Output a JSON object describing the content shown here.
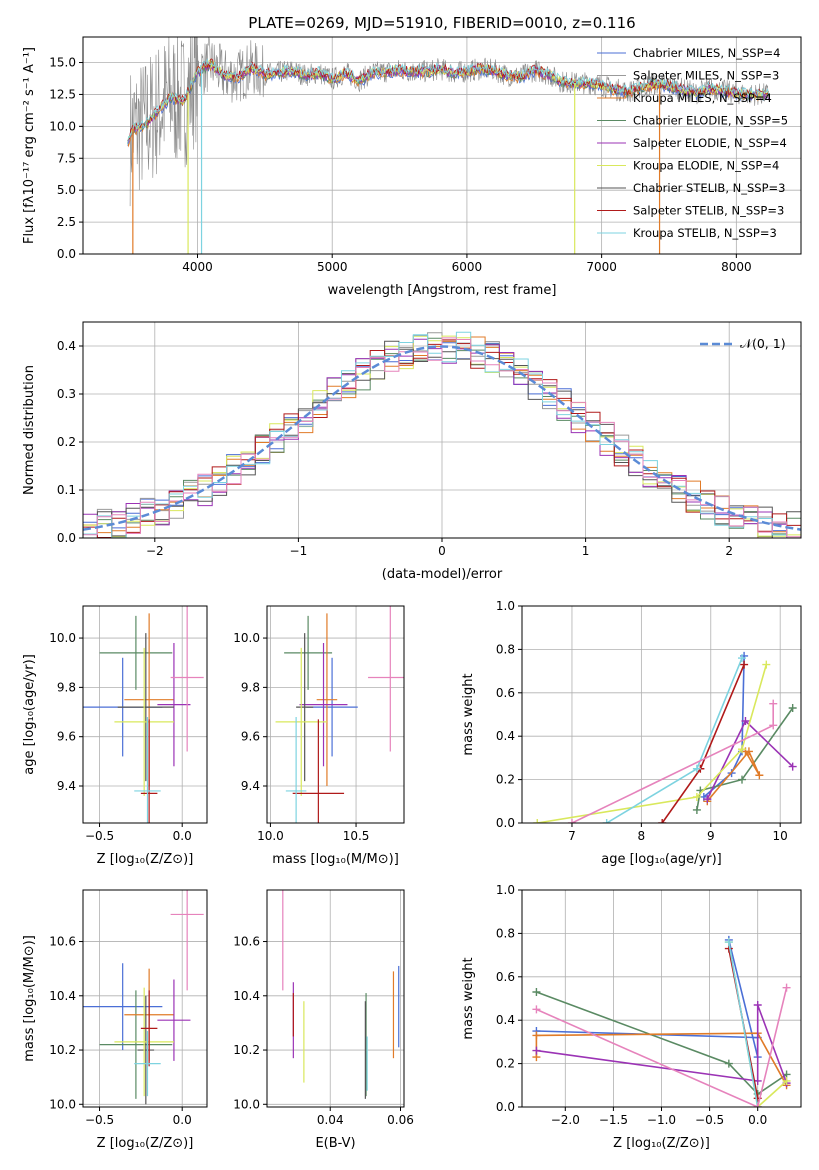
{
  "figure": {
    "title": "PLATE=0269, MJD=51910, FIBERID=0010, z=0.116"
  },
  "chart_data": [
    {
      "type": "line",
      "id": "spectrum",
      "xlabel": "wavelength [Angstrom, rest frame]",
      "ylabel": "Flux [fλ10⁻¹⁷ erg cm⁻² s⁻¹ A⁻¹]",
      "xlim": [
        3150,
        8480
      ],
      "ylim": [
        0,
        17
      ],
      "xticks": [
        4000,
        5000,
        6000,
        7000,
        8000
      ],
      "yticks": [
        0.0,
        2.5,
        5.0,
        7.5,
        10.0,
        12.5,
        15.0
      ],
      "legend_position": "right",
      "legend": [
        {
          "label": "Chabrier MILES, N_SSP=4",
          "color": "#4b6fd6"
        },
        {
          "label": "Salpeter MILES, N_SSP=3",
          "color": "#9a9a9a"
        },
        {
          "label": "Kroupa MILES, N_SSP=4",
          "color": "#e07b28"
        },
        {
          "label": "Chabrier ELODIE, N_SSP=5",
          "color": "#5a8a63"
        },
        {
          "label": "Salpeter ELODIE, N_SSP=4",
          "color": "#9b33b5"
        },
        {
          "label": "Kroupa ELODIE, N_SSP=4",
          "color": "#d9e85c"
        },
        {
          "label": "Chabrier STELIB, N_SSP=3",
          "color": "#555555"
        },
        {
          "label": "Salpeter STELIB, N_SSP=3",
          "color": "#b01a1a"
        },
        {
          "label": "Kroupa STELIB, N_SSP=3",
          "color": "#7dd3e0"
        }
      ],
      "data": {
        "data_x_range": [
          3500,
          8240
        ],
        "model_flux": [
          [
            3480,
            8.7
          ],
          [
            3520,
            9.8
          ],
          [
            3600,
            10.0
          ],
          [
            3700,
            11.2
          ],
          [
            3800,
            12.3
          ],
          [
            3900,
            12.0
          ],
          [
            4000,
            14.3
          ],
          [
            4100,
            14.9
          ],
          [
            4200,
            14.0
          ],
          [
            4300,
            13.9
          ],
          [
            4400,
            14.6
          ],
          [
            4500,
            14.1
          ],
          [
            4600,
            14.2
          ],
          [
            4700,
            14.4
          ],
          [
            4800,
            14.0
          ],
          [
            4900,
            14.2
          ],
          [
            5000,
            13.7
          ],
          [
            5100,
            14.2
          ],
          [
            5200,
            13.6
          ],
          [
            5300,
            14.2
          ],
          [
            5400,
            14.3
          ],
          [
            5500,
            14.4
          ],
          [
            5600,
            14.3
          ],
          [
            5700,
            14.3
          ],
          [
            5800,
            14.5
          ],
          [
            5900,
            14.2
          ],
          [
            6000,
            14.3
          ],
          [
            6100,
            14.5
          ],
          [
            6200,
            14.4
          ],
          [
            6300,
            14.0
          ],
          [
            6400,
            13.9
          ],
          [
            6500,
            14.4
          ],
          [
            6600,
            14.1
          ],
          [
            6700,
            13.5
          ],
          [
            6800,
            13.4
          ],
          [
            6900,
            13.4
          ],
          [
            7000,
            13.2
          ],
          [
            7100,
            12.9
          ],
          [
            7200,
            12.7
          ],
          [
            7300,
            13.1
          ],
          [
            7400,
            13.3
          ],
          [
            7500,
            13.2
          ],
          [
            7600,
            12.9
          ],
          [
            7700,
            12.6
          ],
          [
            7800,
            13.0
          ],
          [
            7900,
            12.8
          ],
          [
            8000,
            12.6
          ],
          [
            8100,
            12.5
          ],
          [
            8200,
            12.5
          ]
        ],
        "drops": [
          [
            3520,
            "#e07b28"
          ],
          [
            3930,
            "#d9e85c"
          ],
          [
            4030,
            "#7dd3e0"
          ],
          [
            6800,
            "#d9e85c"
          ],
          [
            7430,
            "#e07b28"
          ]
        ]
      }
    },
    {
      "type": "histogram",
      "id": "residuals",
      "xlabel": "(data-model)/error",
      "ylabel": "Normed distribution",
      "xlim": [
        -2.5,
        2.5
      ],
      "ylim": [
        0,
        0.45
      ],
      "xticks": [
        -2,
        -1,
        0,
        1,
        2
      ],
      "yticks": [
        0.0,
        0.1,
        0.2,
        0.3,
        0.4
      ],
      "legend": "𝒩(0, 1)",
      "legend_position": "top-right",
      "reference_color": "#5b8bd6",
      "bin_width": 0.1,
      "series_colors": [
        "#4b6fd6",
        "#9a9a9a",
        "#e07b28",
        "#5a8a63",
        "#9b33b5",
        "#d9e85c",
        "#555555",
        "#b01a1a",
        "#7dd3e0",
        "#e683bc"
      ]
    },
    {
      "type": "scatter",
      "id": "age-vs-Z",
      "xlabel": "Z [log₁₀(Z/Z⊙)]",
      "ylabel": "age  [log₁₀(age/yr)]",
      "xlim": [
        -0.6,
        0.15
      ],
      "ylim": [
        9.25,
        10.13
      ],
      "xticks": [
        -0.5,
        0.0
      ],
      "yticks": [
        9.4,
        9.6,
        9.8,
        10.0
      ],
      "points": [
        {
          "x": -0.36,
          "y": 9.72,
          "xerr": 0.24,
          "yerr": 0.2,
          "color": "#4b6fd6"
        },
        {
          "x": -0.28,
          "y": 9.94,
          "xerr": 0.22,
          "yerr": 0.15,
          "color": "#5a8a63"
        },
        {
          "x": -0.2,
          "y": 9.75,
          "xerr": 0.15,
          "yerr": 0.35,
          "color": "#e07b28"
        },
        {
          "x": -0.05,
          "y": 9.73,
          "xerr": 0.1,
          "yerr": 0.25,
          "color": "#9b33b5"
        },
        {
          "x": -0.22,
          "y": 9.72,
          "xerr": 0.17,
          "yerr": 0.3,
          "color": "#555555"
        },
        {
          "x": -0.23,
          "y": 9.66,
          "xerr": 0.18,
          "yerr": 0.3,
          "color": "#d9e85c"
        },
        {
          "x": -0.2,
          "y": 9.37,
          "xerr": 0.05,
          "yerr": 0.3,
          "color": "#b01a1a"
        },
        {
          "x": -0.21,
          "y": 9.38,
          "xerr": 0.08,
          "yerr": 0.3,
          "color": "#7dd3e0"
        },
        {
          "x": 0.03,
          "y": 9.84,
          "xerr": 0.1,
          "yerr": 0.3,
          "color": "#e683bc"
        }
      ]
    },
    {
      "type": "scatter",
      "id": "age-vs-mass",
      "xlabel": "mass [log₁₀(M/M⊙)]",
      "ylabel": "",
      "xlim": [
        9.98,
        10.78
      ],
      "ylim": [
        9.25,
        10.13
      ],
      "xticks": [
        10.0,
        10.5
      ],
      "yticks": [
        9.4,
        9.6,
        9.8,
        10.0
      ],
      "points": [
        {
          "x": 10.36,
          "y": 9.72,
          "xerr": 0.15,
          "yerr": 0.2,
          "color": "#4b6fd6"
        },
        {
          "x": 10.22,
          "y": 9.94,
          "xerr": 0.14,
          "yerr": 0.15,
          "color": "#5a8a63"
        },
        {
          "x": 10.33,
          "y": 9.75,
          "xerr": 0.06,
          "yerr": 0.35,
          "color": "#e07b28"
        },
        {
          "x": 10.31,
          "y": 9.73,
          "xerr": 0.14,
          "yerr": 0.25,
          "color": "#9b33b5"
        },
        {
          "x": 10.2,
          "y": 9.72,
          "xerr": 0.05,
          "yerr": 0.3,
          "color": "#555555"
        },
        {
          "x": 10.18,
          "y": 9.66,
          "xerr": 0.15,
          "yerr": 0.3,
          "color": "#d9e85c"
        },
        {
          "x": 10.28,
          "y": 9.37,
          "xerr": 0.15,
          "yerr": 0.3,
          "color": "#b01a1a"
        },
        {
          "x": 10.15,
          "y": 9.38,
          "xerr": 0.06,
          "yerr": 0.3,
          "color": "#7dd3e0"
        },
        {
          "x": 10.7,
          "y": 9.84,
          "xerr": 0.13,
          "yerr": 0.3,
          "color": "#e683bc"
        }
      ]
    },
    {
      "type": "line",
      "id": "weight-vs-age",
      "xlabel": "age  [log₁₀(age/yr)]",
      "ylabel": "mass weight",
      "xlim": [
        6.28,
        10.3
      ],
      "ylim": [
        0,
        1
      ],
      "xticks": [
        7,
        8,
        9,
        10
      ],
      "yticks": [
        0.0,
        0.2,
        0.4,
        0.6,
        0.8,
        1.0
      ],
      "series": [
        {
          "color": "#4b6fd6",
          "points": [
            [
              8.9,
              0.12
            ],
            [
              9.3,
              0.23
            ],
            [
              9.45,
              0.33
            ],
            [
              9.48,
              0.77
            ]
          ]
        },
        {
          "color": "#5a8a63",
          "points": [
            [
              8.8,
              0.06
            ],
            [
              8.85,
              0.15
            ],
            [
              9.45,
              0.2
            ],
            [
              10.18,
              0.53
            ]
          ]
        },
        {
          "color": "#e07b28",
          "points": [
            [
              8.95,
              0.1
            ],
            [
              9.55,
              0.33
            ],
            [
              9.7,
              0.22
            ],
            [
              9.5,
              0.33
            ]
          ]
        },
        {
          "color": "#9b33b5",
          "points": [
            [
              8.95,
              0.11
            ],
            [
              9.5,
              0.47
            ],
            [
              10.18,
              0.26
            ]
          ]
        },
        {
          "color": "#d9e85c",
          "points": [
            [
              6.5,
              0.0
            ],
            [
              8.8,
              0.12
            ],
            [
              9.45,
              0.34
            ],
            [
              9.8,
              0.73
            ]
          ]
        },
        {
          "color": "#b01a1a",
          "points": [
            [
              8.3,
              0.0
            ],
            [
              8.85,
              0.25
            ],
            [
              9.48,
              0.73
            ]
          ]
        },
        {
          "color": "#7dd3e0",
          "points": [
            [
              7.5,
              0.0
            ],
            [
              8.8,
              0.25
            ],
            [
              9.45,
              0.76
            ]
          ]
        },
        {
          "color": "#e683bc",
          "points": [
            [
              7.0,
              0.0
            ],
            [
              9.9,
              0.45
            ],
            [
              9.9,
              0.55
            ]
          ]
        }
      ]
    },
    {
      "type": "scatter",
      "id": "mass-vs-Z",
      "xlabel": "Z [log₁₀(Z/Z⊙)]",
      "ylabel": "mass [log₁₀(M/M⊙)]",
      "xlim": [
        -0.6,
        0.15
      ],
      "ylim": [
        9.99,
        10.79
      ],
      "xticks": [
        -0.5,
        0.0
      ],
      "yticks": [
        10.0,
        10.2,
        10.4,
        10.6
      ],
      "points": [
        {
          "x": -0.36,
          "y": 10.36,
          "xerr": 0.24,
          "yerr": 0.16,
          "color": "#4b6fd6"
        },
        {
          "x": -0.28,
          "y": 10.22,
          "xerr": 0.22,
          "yerr": 0.2,
          "color": "#5a8a63"
        },
        {
          "x": -0.2,
          "y": 10.33,
          "xerr": 0.15,
          "yerr": 0.17,
          "color": "#e07b28"
        },
        {
          "x": -0.05,
          "y": 10.31,
          "xerr": 0.1,
          "yerr": 0.15,
          "color": "#9b33b5"
        },
        {
          "x": -0.22,
          "y": 10.2,
          "xerr": 0.05,
          "yerr": 0.2,
          "color": "#555555"
        },
        {
          "x": -0.23,
          "y": 10.23,
          "xerr": 0.18,
          "yerr": 0.2,
          "color": "#d9e85c"
        },
        {
          "x": -0.2,
          "y": 10.28,
          "xerr": 0.05,
          "yerr": 0.14,
          "color": "#b01a1a"
        },
        {
          "x": -0.21,
          "y": 10.15,
          "xerr": 0.08,
          "yerr": 0.12,
          "color": "#7dd3e0"
        },
        {
          "x": 0.03,
          "y": 10.7,
          "xerr": 0.1,
          "yerr": 0.28,
          "color": "#e683bc"
        }
      ]
    },
    {
      "type": "scatter",
      "id": "mass-vs-ebv",
      "xlabel": "E(B-V)",
      "ylabel": "",
      "xlim": [
        0.022,
        0.061
      ],
      "ylim": [
        9.99,
        10.79
      ],
      "xticks": [
        0.04,
        0.06
      ],
      "yticks": [
        10.0,
        10.2,
        10.4,
        10.6
      ],
      "points": [
        {
          "x": 0.0595,
          "y": 10.36,
          "xerr": 0,
          "yerr": 0.15,
          "color": "#4b6fd6"
        },
        {
          "x": 0.0502,
          "y": 10.22,
          "xerr": 0,
          "yerr": 0.19,
          "color": "#5a8a63"
        },
        {
          "x": 0.058,
          "y": 10.33,
          "xerr": 0,
          "yerr": 0.16,
          "color": "#e07b28"
        },
        {
          "x": 0.0295,
          "y": 10.31,
          "xerr": 0,
          "yerr": 0.14,
          "color": "#9b33b5"
        },
        {
          "x": 0.05,
          "y": 10.2,
          "xerr": 0,
          "yerr": 0.18,
          "color": "#555555"
        },
        {
          "x": 0.0325,
          "y": 10.23,
          "xerr": 0,
          "yerr": 0.15,
          "color": "#d9e85c"
        },
        {
          "x": 0.0295,
          "y": 10.33,
          "xerr": 0,
          "yerr": 0.08,
          "color": "#b01a1a"
        },
        {
          "x": 0.0505,
          "y": 10.15,
          "xerr": 0,
          "yerr": 0.1,
          "color": "#7dd3e0"
        },
        {
          "x": 0.0265,
          "y": 10.7,
          "xerr": 0,
          "yerr": 0.28,
          "color": "#e683bc"
        }
      ]
    },
    {
      "type": "line",
      "id": "weight-vs-Z",
      "xlabel": "Z [log₁₀(Z/Z⊙)]",
      "ylabel": "mass weight",
      "xlim": [
        -2.45,
        0.45
      ],
      "ylim": [
        0,
        1
      ],
      "xticks": [
        -2.0,
        -1.5,
        -1.0,
        -0.5,
        0.0
      ],
      "yticks": [
        0.0,
        0.2,
        0.4,
        0.6,
        0.8,
        1.0
      ],
      "series": [
        {
          "color": "#4b6fd6",
          "points": [
            [
              -2.3,
              0.35
            ],
            [
              0.0,
              0.32
            ],
            [
              0.0,
              0.23
            ],
            [
              -0.3,
              0.77
            ]
          ]
        },
        {
          "color": "#5a8a63",
          "points": [
            [
              -2.3,
              0.53
            ],
            [
              -0.3,
              0.2
            ],
            [
              0.0,
              0.06
            ],
            [
              0.3,
              0.15
            ]
          ]
        },
        {
          "color": "#e07b28",
          "points": [
            [
              -2.3,
              0.23
            ],
            [
              -2.3,
              0.33
            ],
            [
              0.0,
              0.34
            ],
            [
              0.3,
              0.1
            ]
          ]
        },
        {
          "color": "#9b33b5",
          "points": [
            [
              -2.3,
              0.26
            ],
            [
              0.0,
              0.12
            ],
            [
              0.0,
              0.47
            ],
            [
              0.3,
              0.11
            ]
          ]
        },
        {
          "color": "#d9e85c",
          "points": [
            [
              -0.3,
              0.76
            ],
            [
              0.0,
              0.0
            ],
            [
              0.3,
              0.12
            ]
          ]
        },
        {
          "color": "#b01a1a",
          "points": [
            [
              -0.3,
              0.73
            ],
            [
              0.0,
              0.04
            ]
          ]
        },
        {
          "color": "#7dd3e0",
          "points": [
            [
              -0.3,
              0.76
            ],
            [
              0.0,
              0.0
            ]
          ]
        },
        {
          "color": "#e683bc",
          "points": [
            [
              -2.3,
              0.45
            ],
            [
              0.0,
              0.0
            ],
            [
              0.3,
              0.55
            ]
          ]
        }
      ]
    }
  ]
}
